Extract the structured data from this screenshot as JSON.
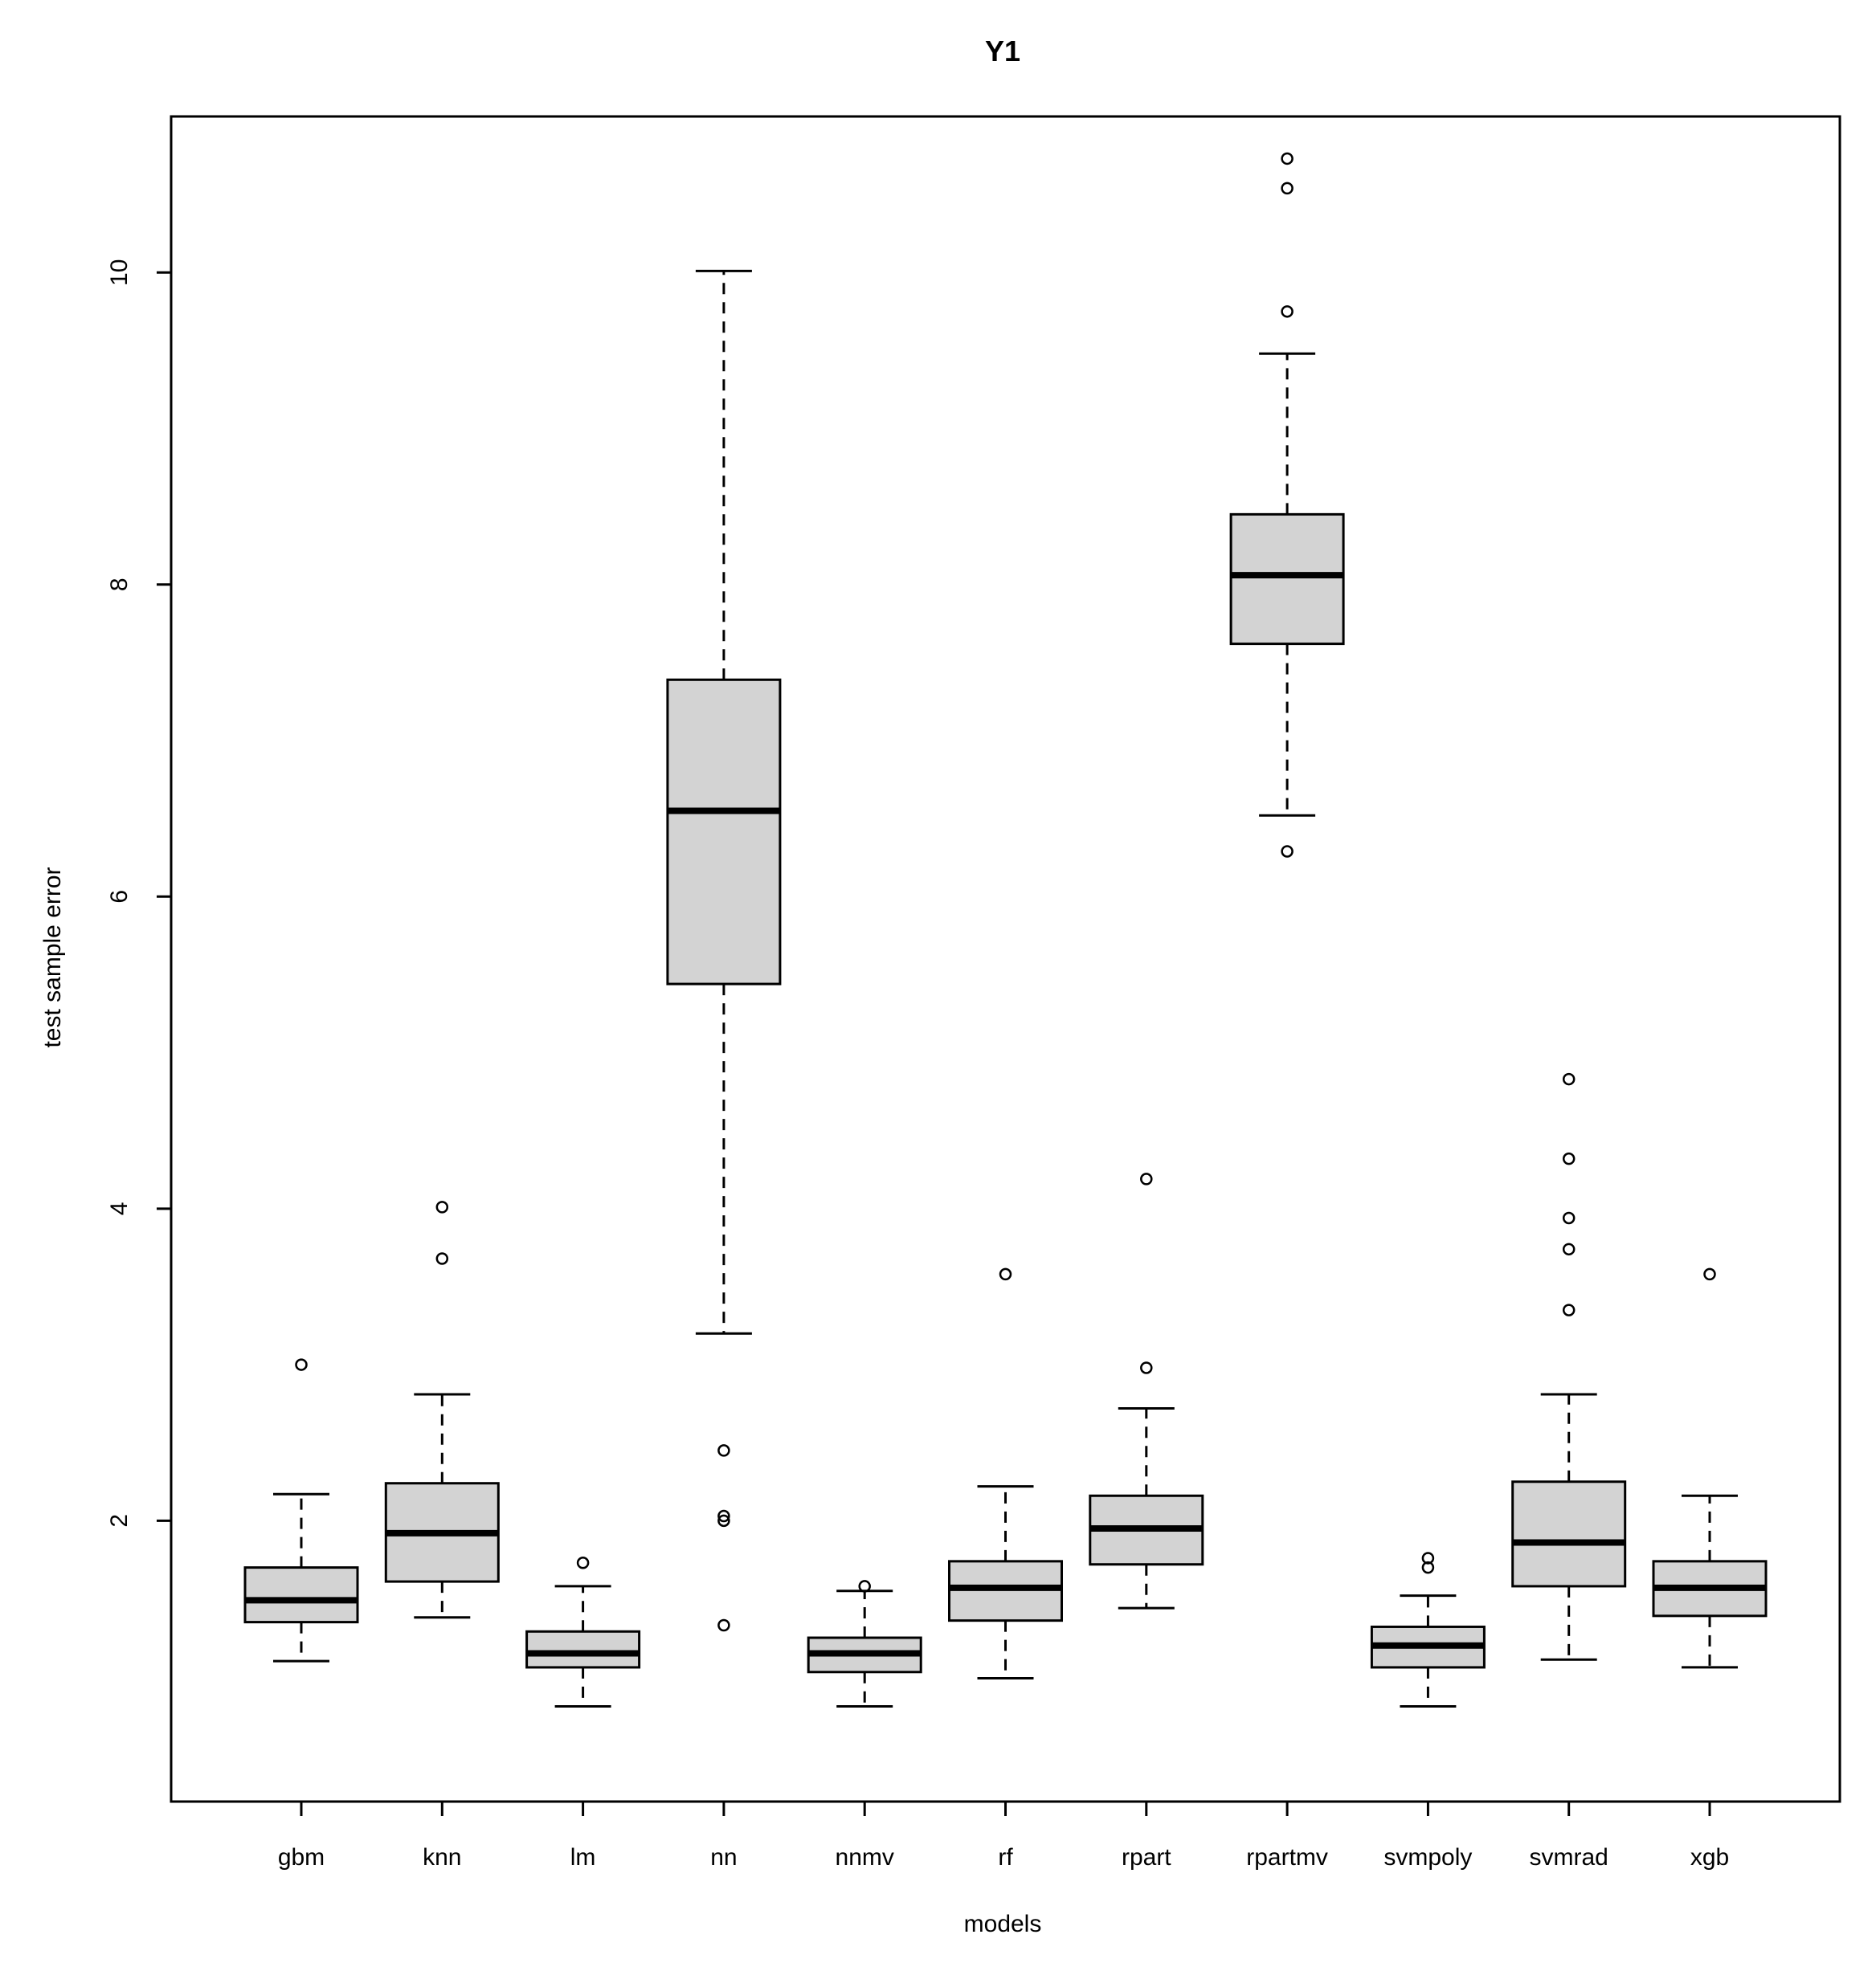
{
  "chart_data": {
    "type": "box",
    "title": "Y1",
    "xlabel": "models",
    "ylabel": "test sample error",
    "ylim": [
      0.2,
      11.0
    ],
    "yticks": [
      2,
      4,
      6,
      8,
      10
    ],
    "grid": false,
    "legend": "none",
    "colors": {
      "box_fill": "#d3d3d3",
      "stroke": "#000000",
      "background": "#ffffff"
    },
    "categories": [
      "gbm",
      "knn",
      "lm",
      "nn",
      "nnmv",
      "rf",
      "rpart",
      "rpartmv",
      "svmpoly",
      "svmrad",
      "xgb"
    ],
    "boxes": [
      {
        "name": "gbm",
        "whisker_low": 1.1,
        "q1": 1.35,
        "median": 1.49,
        "q3": 1.7,
        "whisker_high": 2.17,
        "outliers": [
          3.0
        ]
      },
      {
        "name": "knn",
        "whisker_low": 1.38,
        "q1": 1.61,
        "median": 1.92,
        "q3": 2.24,
        "whisker_high": 2.81,
        "outliers": [
          3.68,
          4.01
        ]
      },
      {
        "name": "lm",
        "whisker_low": 0.81,
        "q1": 1.06,
        "median": 1.15,
        "q3": 1.29,
        "whisker_high": 1.58,
        "outliers": [
          1.73
        ]
      },
      {
        "name": "nn",
        "whisker_low": 3.2,
        "q1": 5.44,
        "median": 6.55,
        "q3": 7.39,
        "whisker_high": 10.01,
        "outliers": [
          1.33,
          2.0,
          2.03,
          2.45
        ]
      },
      {
        "name": "nnmv",
        "whisker_low": 0.81,
        "q1": 1.03,
        "median": 1.15,
        "q3": 1.25,
        "whisker_high": 1.55,
        "outliers": [
          1.58
        ]
      },
      {
        "name": "rf",
        "whisker_low": 0.99,
        "q1": 1.36,
        "median": 1.57,
        "q3": 1.74,
        "whisker_high": 2.22,
        "outliers": [
          3.58
        ]
      },
      {
        "name": "rpart",
        "whisker_low": 1.44,
        "q1": 1.72,
        "median": 1.95,
        "q3": 2.16,
        "whisker_high": 2.72,
        "outliers": [
          2.98,
          4.19
        ]
      },
      {
        "name": "rpartmv",
        "whisker_low": 6.52,
        "q1": 7.62,
        "median": 8.06,
        "q3": 8.45,
        "whisker_high": 9.48,
        "outliers": [
          6.29,
          9.75,
          10.54,
          10.73
        ]
      },
      {
        "name": "svmpoly",
        "whisker_low": 0.81,
        "q1": 1.06,
        "median": 1.2,
        "q3": 1.32,
        "whisker_high": 1.52,
        "outliers": [
          1.7,
          1.76
        ]
      },
      {
        "name": "svmrad",
        "whisker_low": 1.11,
        "q1": 1.58,
        "median": 1.86,
        "q3": 2.25,
        "whisker_high": 2.81,
        "outliers": [
          3.35,
          3.74,
          3.94,
          4.32,
          4.83
        ]
      },
      {
        "name": "xgb",
        "whisker_low": 1.06,
        "q1": 1.39,
        "median": 1.57,
        "q3": 1.74,
        "whisker_high": 2.16,
        "outliers": [
          3.58
        ]
      }
    ]
  }
}
